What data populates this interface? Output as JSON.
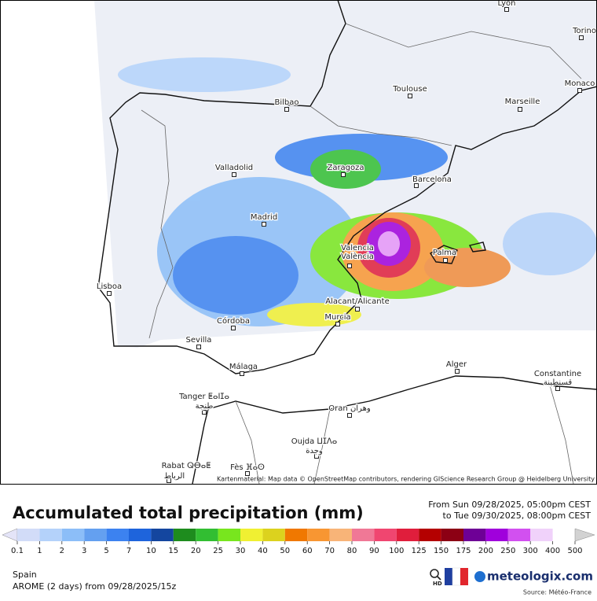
{
  "map": {
    "cities": [
      {
        "label": "Lyon"
      },
      {
        "label": "Torino"
      },
      {
        "label": "Monaco"
      },
      {
        "label": "Toulouse"
      },
      {
        "label": "Marseille"
      },
      {
        "label": "Bilbao"
      },
      {
        "label": "Zaragoza"
      },
      {
        "label": "Barcelona"
      },
      {
        "label": "Valladolid"
      },
      {
        "label": "Madrid"
      },
      {
        "label": "Valencia"
      },
      {
        "label": "València"
      },
      {
        "label": "Palma"
      },
      {
        "label": "Lisboa"
      },
      {
        "label": "Alacant/Alicante"
      },
      {
        "label": "Murcia"
      },
      {
        "label": "Córdoba"
      },
      {
        "label": "Sevilla"
      },
      {
        "label": "Málaga"
      },
      {
        "label": "Alger"
      },
      {
        "label": "Constantine"
      },
      {
        "label": "قسنطينة"
      },
      {
        "label": "Tanger ⵟⴰⵏⵊⴰ"
      },
      {
        "label": "طنجة"
      },
      {
        "label": "Oran وهران"
      },
      {
        "label": "Oujda ⵡⵊⴷⴰ"
      },
      {
        "label": "وجدة"
      },
      {
        "label": "Rabat ⵕⴱⴰⵟ"
      },
      {
        "label": "الرباط"
      },
      {
        "label": "Fès ⴼⴰⵙ"
      }
    ],
    "attribution": "Kartenmaterial: Map data © OpenStreetMap contributors, rendering GIScience Research Group @ Heidelberg University"
  },
  "header": {
    "title": "Accumulated total precipitation (mm)",
    "period_from": "From Sun 09/28/2025, 05:00pm CEST",
    "period_to": "to Tue 09/30/2025, 08:00pm CEST"
  },
  "legend": {
    "labels": [
      "0.1",
      "1",
      "2",
      "3",
      "5",
      "7",
      "10",
      "15",
      "20",
      "25",
      "30",
      "40",
      "50",
      "60",
      "70",
      "80",
      "90",
      "100",
      "125",
      "150",
      "175",
      "200",
      "250",
      "300",
      "400",
      "500"
    ],
    "colors": [
      "#e4e4f8",
      "#d2dcf8",
      "#b4d2fa",
      "#8cbef8",
      "#64a0f0",
      "#3c82f0",
      "#1e64dc",
      "#14469f",
      "#1e8c1e",
      "#32be32",
      "#78e61e",
      "#f0f032",
      "#dcd21e",
      "#f07800",
      "#f89632",
      "#f8b478",
      "#f07896",
      "#f04670",
      "#e01e3c",
      "#b40000",
      "#8c0014",
      "#6e0096",
      "#a000dc",
      "#d250f0",
      "#f0d2fa",
      "#d2d2d2"
    ]
  },
  "footer": {
    "region": "Spain",
    "model": "AROME (2 days)  from  09/28/2025/15z",
    "hd": "HD",
    "brand": "meteologix.com",
    "source": "Source: Météo-France"
  }
}
